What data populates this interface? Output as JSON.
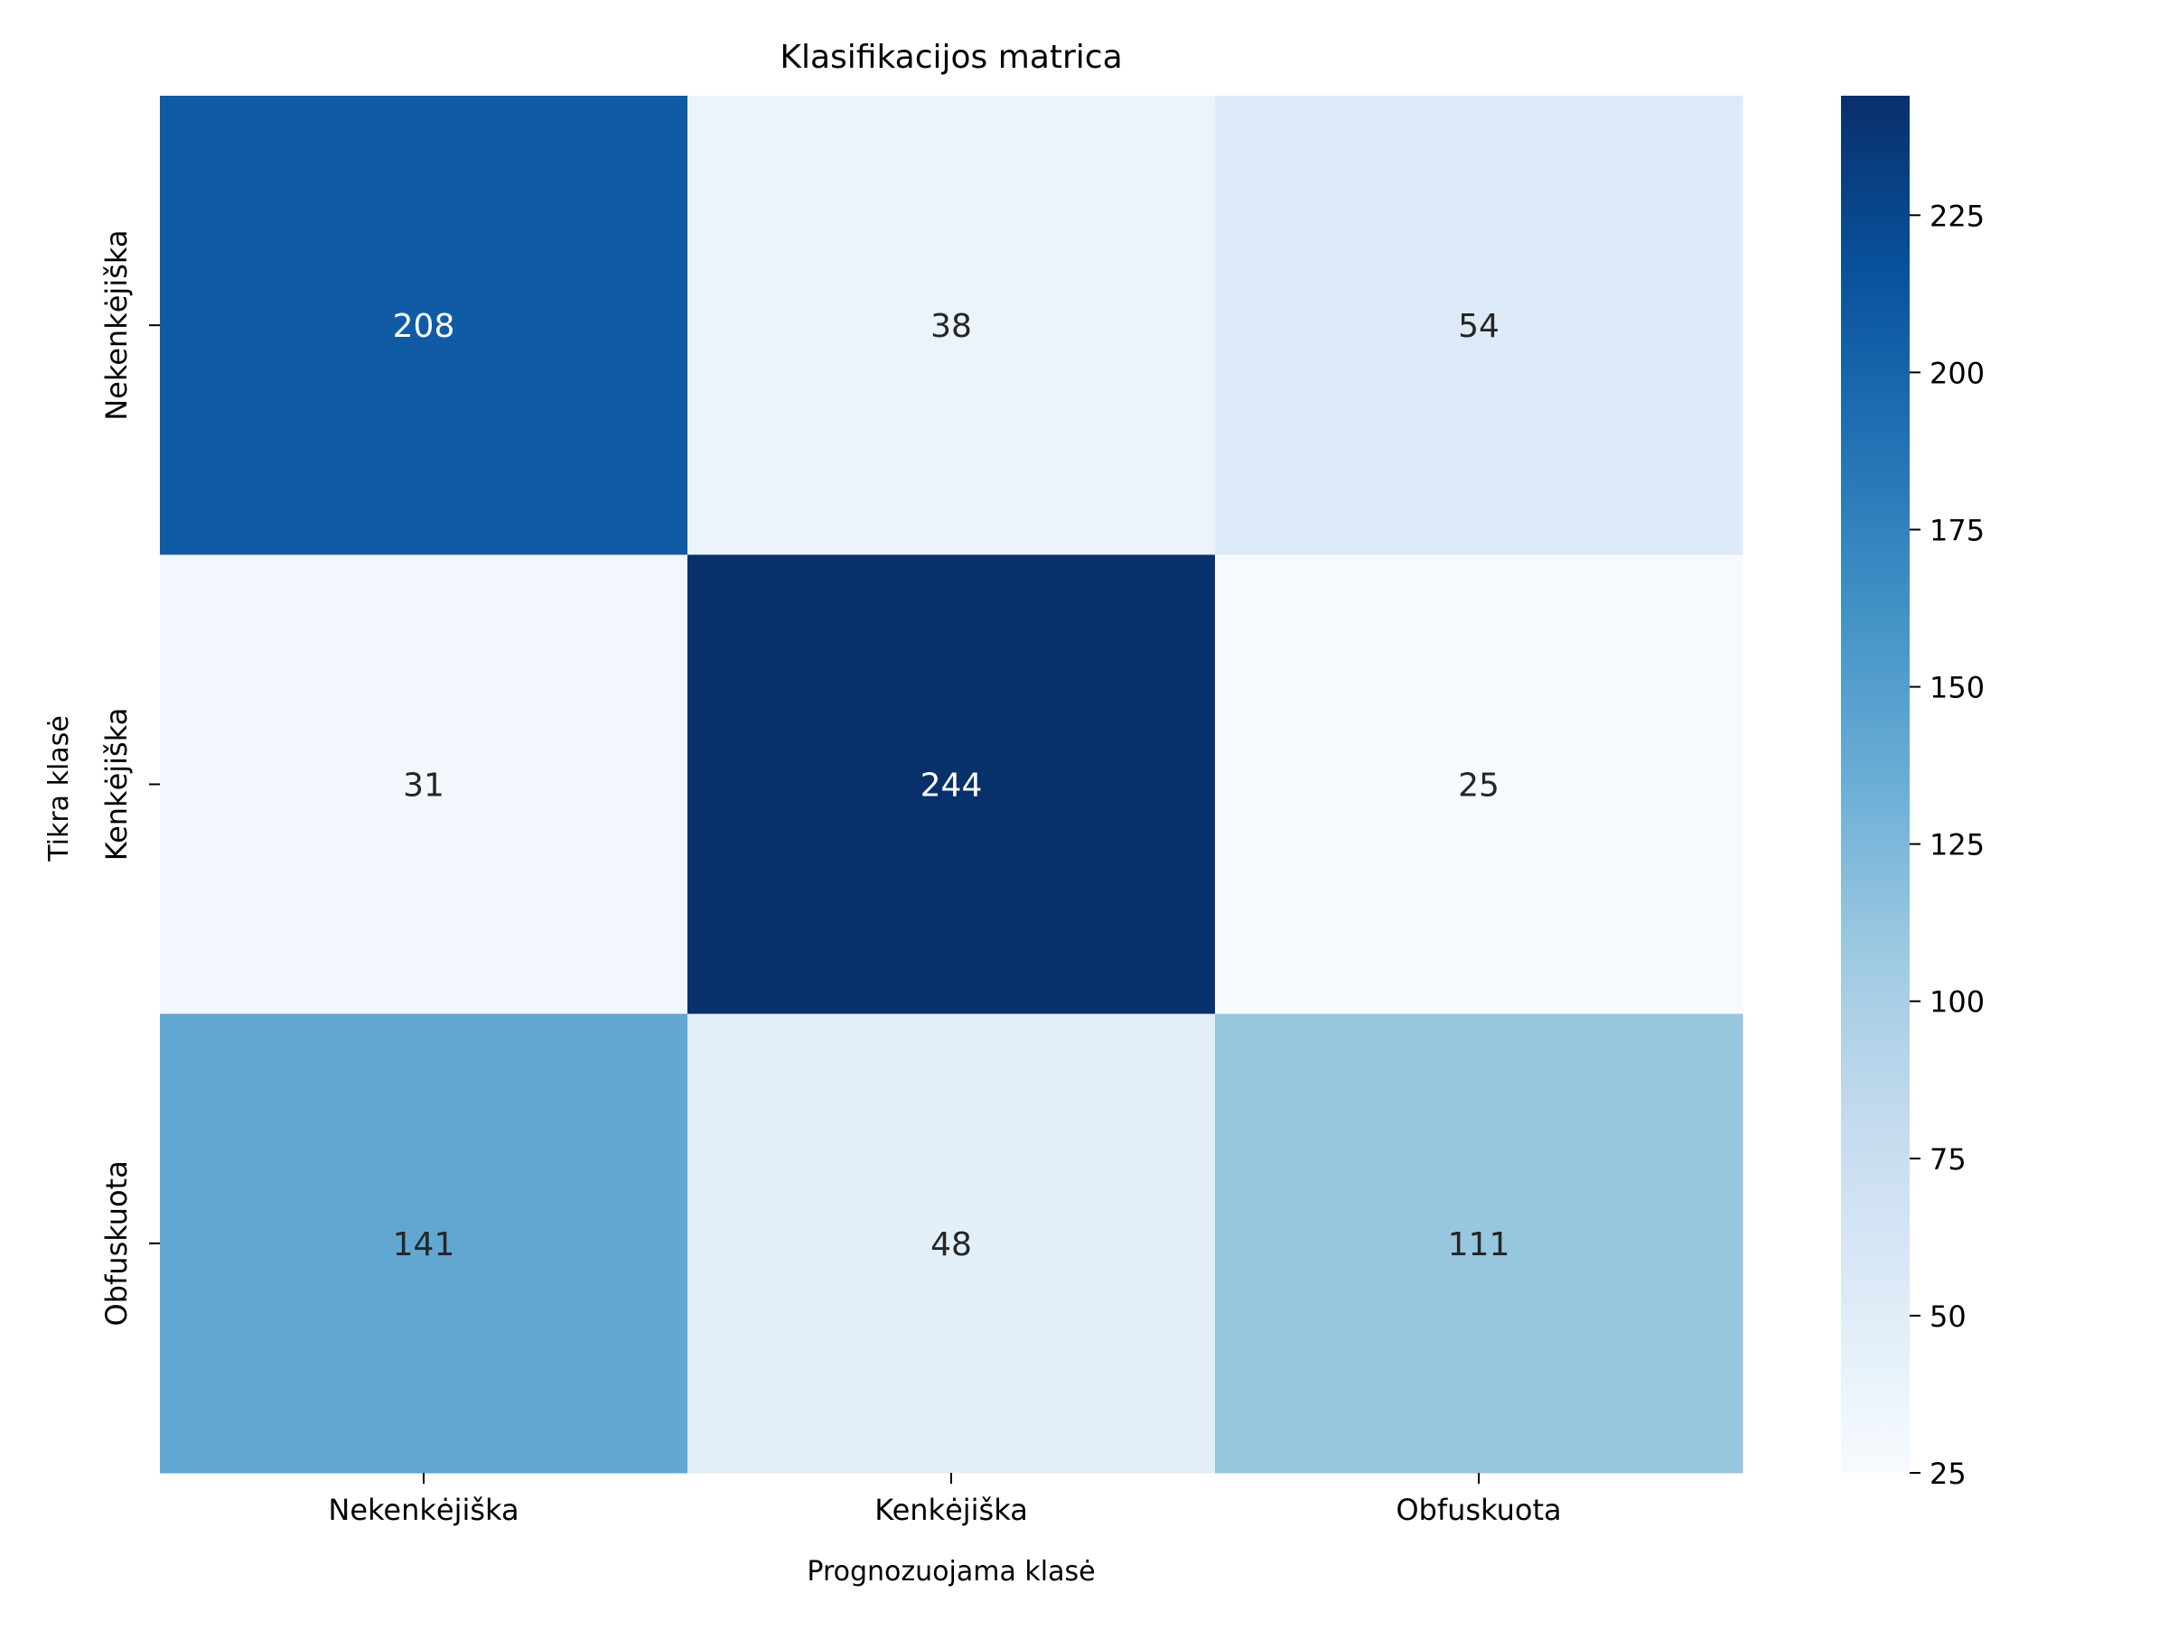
{
  "chart_data": {
    "type": "heatmap",
    "title": "Klasifikacijos matrica",
    "xlabel": "Prognozuojama klasė",
    "ylabel": "Tikra klasė",
    "x_categories": [
      "Nekenkėjiška",
      "Kenkėjiška",
      "Obfuskuota"
    ],
    "y_categories": [
      "Nekenkėjiška",
      "Kenkėjiška",
      "Obfuskuota"
    ],
    "values": [
      [
        208,
        38,
        54
      ],
      [
        31,
        244,
        25
      ],
      [
        141,
        48,
        111
      ]
    ],
    "colormap": "Blues",
    "vmin": 25,
    "vmax": 244,
    "colorbar_ticks": [
      25,
      50,
      75,
      100,
      125,
      150,
      175,
      200,
      225
    ],
    "annotation_colors": {
      "light": "#ffffff",
      "dark": "#262626"
    }
  }
}
